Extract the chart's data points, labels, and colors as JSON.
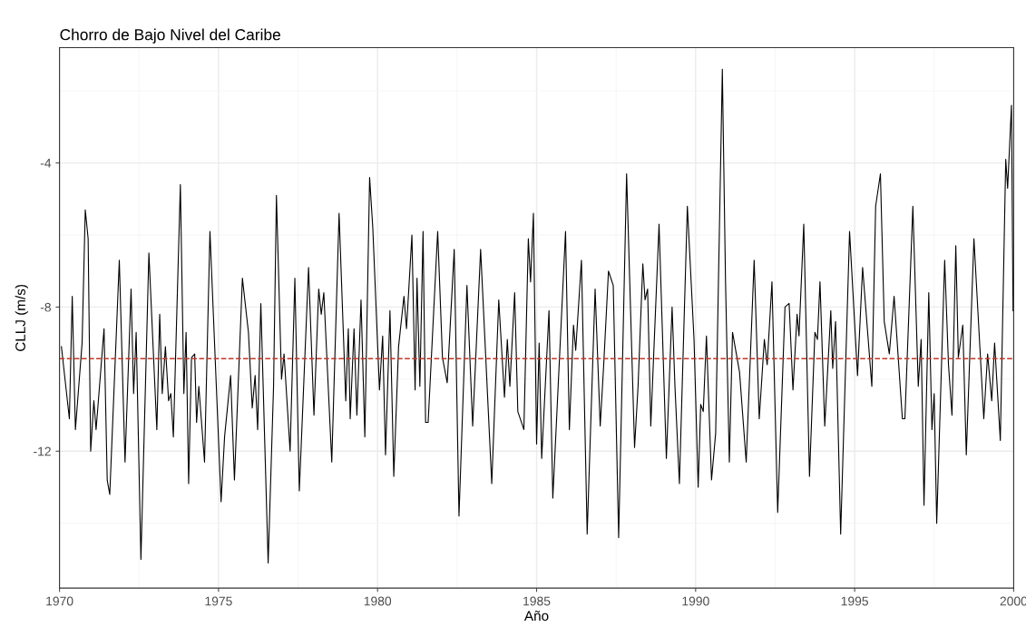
{
  "chart_data": {
    "type": "line",
    "title": "Chorro de Bajo Nivel del Caribe",
    "xlabel": "Año",
    "ylabel": "CLLJ (m/s)",
    "xlim": [
      1970,
      2000
    ],
    "xticks": [
      1970,
      1975,
      1980,
      1985,
      1990,
      1995,
      2000
    ],
    "ylim": [
      -15.8,
      -0.8
    ],
    "yticks": [
      -4,
      -8,
      -12
    ],
    "grid": true,
    "legend": false,
    "line_style": "solid",
    "ref_lines": [
      {
        "axis": "y",
        "value": -9.43,
        "color": "#c0392b",
        "line_style": "dashed"
      }
    ],
    "series": [
      {
        "color": "#000000",
        "x": [
          1970.06,
          1970.31,
          1970.4,
          1970.5,
          1970.71,
          1970.81,
          1970.9,
          1970.98,
          1971.08,
          1971.15,
          1971.4,
          1971.5,
          1971.58,
          1971.88,
          1972.06,
          1972.25,
          1972.33,
          1972.41,
          1972.56,
          1972.81,
          1973.06,
          1973.15,
          1973.23,
          1973.33,
          1973.43,
          1973.5,
          1973.58,
          1973.8,
          1973.91,
          1973.98,
          1974.06,
          1974.15,
          1974.25,
          1974.31,
          1974.38,
          1974.56,
          1974.73,
          1975.08,
          1975.19,
          1975.38,
          1975.5,
          1975.75,
          1975.94,
          1976.06,
          1976.15,
          1976.23,
          1976.33,
          1976.56,
          1976.73,
          1976.82,
          1976.98,
          1977.06,
          1977.25,
          1977.4,
          1977.54,
          1977.83,
          1978.0,
          1978.15,
          1978.23,
          1978.31,
          1978.56,
          1978.79,
          1979.0,
          1979.08,
          1979.14,
          1979.26,
          1979.35,
          1979.48,
          1979.6,
          1979.75,
          1979.85,
          1980.06,
          1980.16,
          1980.25,
          1980.39,
          1980.51,
          1980.66,
          1980.83,
          1980.91,
          1981.08,
          1981.18,
          1981.24,
          1981.33,
          1981.43,
          1981.51,
          1981.59,
          1981.89,
          1982.04,
          1982.19,
          1982.41,
          1982.56,
          1982.81,
          1982.99,
          1983.24,
          1983.59,
          1983.81,
          1983.99,
          1984.08,
          1984.16,
          1984.31,
          1984.41,
          1984.6,
          1984.74,
          1984.81,
          1984.9,
          1985.0,
          1985.08,
          1985.16,
          1985.39,
          1985.51,
          1985.91,
          1986.03,
          1986.16,
          1986.23,
          1986.41,
          1986.59,
          1986.84,
          1987.0,
          1987.11,
          1987.26,
          1987.41,
          1987.58,
          1987.83,
          1988.08,
          1988.19,
          1988.34,
          1988.41,
          1988.49,
          1988.59,
          1988.85,
          1989.08,
          1989.26,
          1989.35,
          1989.49,
          1989.74,
          1989.95,
          1990.08,
          1990.16,
          1990.24,
          1990.34,
          1990.5,
          1990.63,
          1990.84,
          1990.94,
          1991.06,
          1991.16,
          1991.38,
          1991.59,
          1991.84,
          1992.0,
          1992.16,
          1992.25,
          1992.4,
          1992.58,
          1992.81,
          1992.94,
          1993.06,
          1993.19,
          1993.25,
          1993.4,
          1993.58,
          1993.75,
          1993.83,
          1993.91,
          1994.06,
          1994.25,
          1994.31,
          1994.4,
          1994.56,
          1994.84,
          1995.09,
          1995.25,
          1995.54,
          1995.66,
          1995.81,
          1995.93,
          1996.09,
          1996.24,
          1996.5,
          1996.58,
          1996.83,
          1997.0,
          1997.09,
          1997.18,
          1997.33,
          1997.43,
          1997.5,
          1997.58,
          1997.83,
          1997.95,
          1998.06,
          1998.18,
          1998.26,
          1998.4,
          1998.51,
          1998.75,
          1999.06,
          1999.18,
          1999.31,
          1999.4,
          1999.58,
          1999.75,
          1999.81,
          1999.93,
          1999.98
        ],
        "values": [
          -9.1,
          -11.1,
          -7.7,
          -11.4,
          -9.0,
          -5.3,
          -6.1,
          -12.0,
          -10.6,
          -11.4,
          -8.6,
          -12.8,
          -13.2,
          -6.7,
          -12.3,
          -7.5,
          -10.4,
          -8.7,
          -15.0,
          -6.5,
          -11.4,
          -8.2,
          -10.4,
          -9.1,
          -10.6,
          -10.4,
          -11.6,
          -4.6,
          -10.4,
          -8.7,
          -12.9,
          -9.4,
          -9.3,
          -11.2,
          -10.2,
          -12.3,
          -5.9,
          -13.4,
          -11.6,
          -9.9,
          -12.8,
          -7.2,
          -8.7,
          -10.8,
          -9.9,
          -11.4,
          -7.9,
          -15.1,
          -10.2,
          -4.9,
          -10.0,
          -9.3,
          -12.0,
          -7.2,
          -13.1,
          -6.9,
          -11.0,
          -7.5,
          -8.2,
          -7.6,
          -12.3,
          -5.4,
          -10.6,
          -8.6,
          -11.1,
          -8.6,
          -11.0,
          -7.8,
          -11.6,
          -4.4,
          -5.8,
          -10.3,
          -8.8,
          -12.1,
          -8.1,
          -12.7,
          -9.1,
          -7.7,
          -8.6,
          -6.0,
          -10.3,
          -7.2,
          -10.2,
          -5.9,
          -11.2,
          -11.2,
          -5.9,
          -9.4,
          -10.1,
          -6.4,
          -13.8,
          -7.4,
          -11.3,
          -6.4,
          -12.9,
          -7.8,
          -10.5,
          -8.9,
          -10.2,
          -7.6,
          -10.9,
          -11.4,
          -6.1,
          -7.3,
          -5.4,
          -11.8,
          -9.0,
          -12.2,
          -8.1,
          -13.3,
          -5.9,
          -11.4,
          -8.5,
          -9.2,
          -6.7,
          -14.3,
          -7.5,
          -11.3,
          -9.6,
          -7.0,
          -7.4,
          -14.4,
          -4.3,
          -11.9,
          -10.2,
          -6.8,
          -7.8,
          -7.5,
          -11.3,
          -5.7,
          -12.2,
          -8.0,
          -10.2,
          -12.9,
          -5.2,
          -8.9,
          -13.0,
          -10.7,
          -10.9,
          -8.8,
          -12.8,
          -11.5,
          -1.4,
          -7.3,
          -12.3,
          -8.7,
          -9.8,
          -12.3,
          -6.7,
          -11.1,
          -8.9,
          -9.6,
          -7.3,
          -13.7,
          -8.0,
          -7.9,
          -10.3,
          -8.2,
          -8.8,
          -5.7,
          -12.7,
          -8.7,
          -8.9,
          -7.3,
          -11.3,
          -8.1,
          -9.7,
          -8.4,
          -14.3,
          -5.9,
          -9.9,
          -6.9,
          -10.2,
          -5.2,
          -4.3,
          -8.4,
          -9.3,
          -7.7,
          -11.1,
          -11.1,
          -5.2,
          -10.2,
          -8.9,
          -13.5,
          -7.6,
          -11.4,
          -10.4,
          -14.0,
          -6.7,
          -9.6,
          -11.0,
          -6.3,
          -9.4,
          -8.5,
          -12.1,
          -6.1,
          -11.1,
          -9.3,
          -10.6,
          -9.0,
          -11.7,
          -3.9,
          -4.7,
          -2.4,
          -8.1
        ]
      }
    ]
  }
}
